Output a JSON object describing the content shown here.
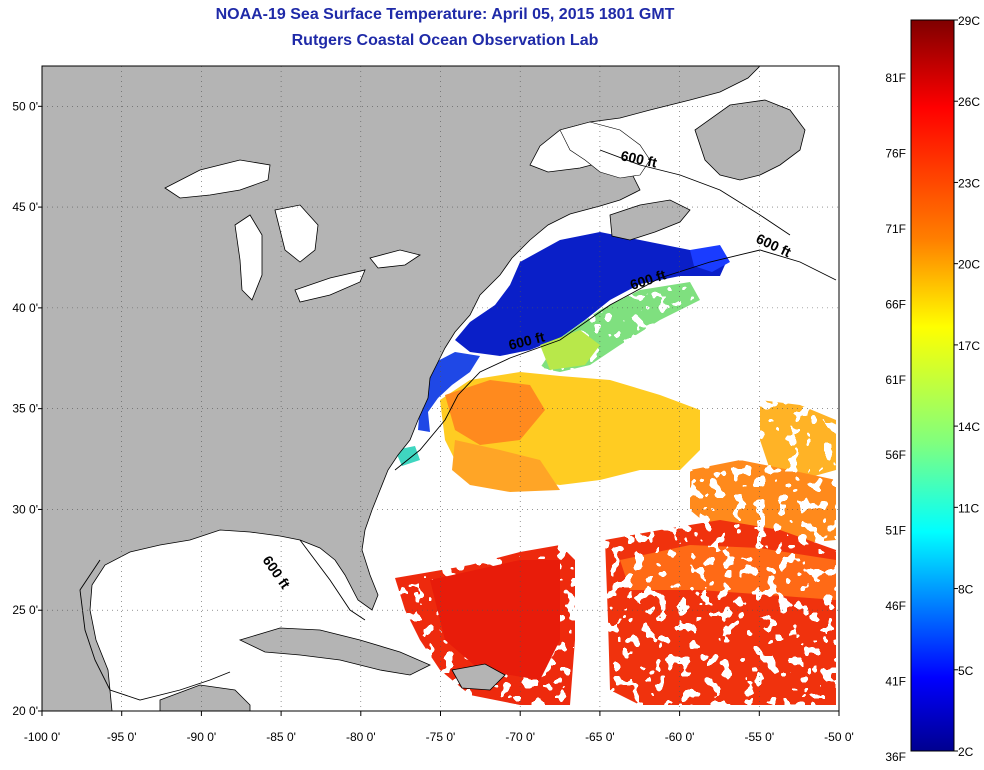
{
  "title": {
    "line1": "NOAA-19 Sea Surface Temperature:  April 05, 2015 1801 GMT",
    "line2": "Rutgers Coastal Ocean Observation Lab"
  },
  "map": {
    "lon_range": [
      -100,
      -50
    ],
    "lat_range": [
      20,
      52
    ],
    "lon_ticks": [
      "-100 0'",
      "-95 0'",
      "-90 0'",
      "-85 0'",
      "-80 0'",
      "-75 0'",
      "-70 0'",
      "-65 0'",
      "-60 0'",
      "-55 0'",
      "-50 0'"
    ],
    "lat_ticks": [
      "20 0'",
      "25 0'",
      "30 0'",
      "35 0'",
      "40 0'",
      "45 0'",
      "50 0'"
    ],
    "land_color": "#b4b4b4",
    "ocean_nodata_color": "#ffffff",
    "isobath_labels": [
      "600 ft",
      "600 ft",
      "600 ft",
      "600 ft",
      "600 ft"
    ]
  },
  "colorbar": {
    "celsius_labels": [
      "29C",
      "26C",
      "23C",
      "20C",
      "17C",
      "14C",
      "11C",
      "8C",
      "5C",
      "2C"
    ],
    "fahrenheit_labels": [
      "81F",
      "76F",
      "71F",
      "66F",
      "61F",
      "56F",
      "51F",
      "46F",
      "41F",
      "36F"
    ],
    "color_stops": [
      "#7f0000",
      "#ff0000",
      "#ff7f00",
      "#ffff00",
      "#7fff7f",
      "#00ffff",
      "#007fff",
      "#0000ff",
      "#00008f"
    ]
  }
}
